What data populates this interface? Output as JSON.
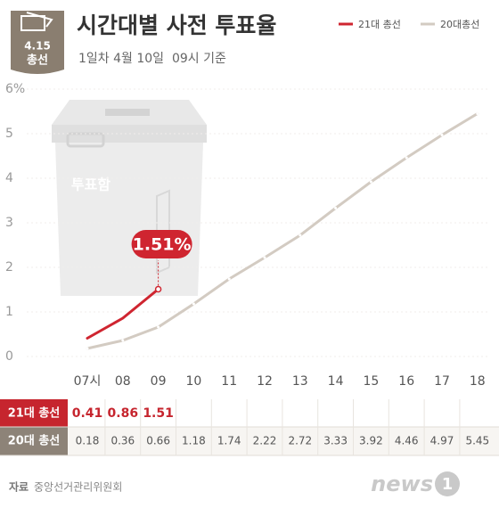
{
  "badge": {
    "line1": "4.15",
    "line2": "총선"
  },
  "chart_data": {
    "type": "line",
    "title": "시간대별 사전 투표율",
    "subtitle": "1일차 4월 10일  09시 기준",
    "categories": [
      "07시",
      "08",
      "09",
      "10",
      "11",
      "12",
      "13",
      "14",
      "15",
      "16",
      "17",
      "18"
    ],
    "series": [
      {
        "name": "21대 총선",
        "color": "#cf2530",
        "values": [
          0.41,
          0.86,
          1.51,
          null,
          null,
          null,
          null,
          null,
          null,
          null,
          null,
          null
        ],
        "value_labels": [
          null,
          null,
          "1.51%",
          null,
          null,
          null,
          null,
          null,
          null,
          null,
          null,
          null
        ]
      },
      {
        "name": "20대총선",
        "color": "#d3cbc2",
        "values": [
          0.18,
          0.36,
          0.66,
          1.18,
          1.74,
          2.22,
          2.72,
          3.33,
          3.92,
          4.46,
          4.97,
          5.45
        ]
      }
    ],
    "ylim": [
      0,
      6
    ],
    "yticks": [
      0,
      1,
      2,
      3,
      4,
      5,
      {
        "value": 6,
        "label": "6%"
      }
    ],
    "grid": true,
    "legend": "top-right",
    "illustration_label": "투표함",
    "table_row_labels": [
      "21대 총선",
      "20대 총선"
    ]
  },
  "footer": {
    "source_label": "자료",
    "source": "중앙선거관리위원회",
    "logo": "news",
    "logo_mark": "1"
  }
}
